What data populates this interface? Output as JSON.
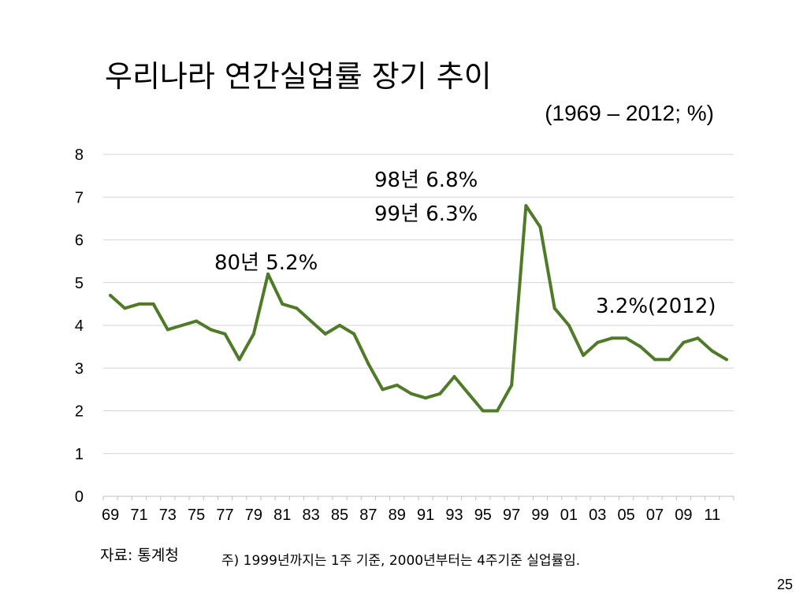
{
  "slide": {
    "title": "우리나라 연간실업률 장기 추이",
    "subtitle": "(1969 – 2012; %)",
    "source": "자료: 통계청",
    "note": "주) 1999년까지는 1주 기준, 2000년부터는 4주기준 실업률임.",
    "page_number": "25"
  },
  "chart_data": {
    "type": "line",
    "title": "우리나라 연간실업률 장기 추이",
    "xlabel": "",
    "ylabel": "",
    "x": [
      1969,
      1970,
      1971,
      1972,
      1973,
      1974,
      1975,
      1976,
      1977,
      1978,
      1979,
      1980,
      1981,
      1982,
      1983,
      1984,
      1985,
      1986,
      1987,
      1988,
      1989,
      1990,
      1991,
      1992,
      1993,
      1994,
      1995,
      1996,
      1997,
      1998,
      1999,
      2000,
      2001,
      2002,
      2003,
      2004,
      2005,
      2006,
      2007,
      2008,
      2009,
      2010,
      2011,
      2012
    ],
    "x_tick_labels": [
      "69",
      "71",
      "73",
      "75",
      "77",
      "79",
      "81",
      "83",
      "85",
      "87",
      "89",
      "91",
      "93",
      "95",
      "97",
      "99",
      "01",
      "03",
      "05",
      "07",
      "09",
      "11"
    ],
    "series": [
      {
        "values": [
          4.7,
          4.4,
          4.5,
          4.5,
          3.9,
          4.0,
          4.1,
          3.9,
          3.8,
          3.2,
          3.8,
          5.2,
          4.5,
          4.4,
          4.1,
          3.8,
          4.0,
          3.8,
          3.1,
          2.5,
          2.6,
          2.4,
          2.3,
          2.4,
          2.8,
          2.4,
          2.0,
          2.0,
          2.6,
          6.8,
          6.3,
          4.4,
          4.0,
          3.3,
          3.6,
          3.7,
          3.7,
          3.5,
          3.2,
          3.2,
          3.6,
          3.7,
          3.4,
          3.2
        ],
        "color": "#4f7a28"
      }
    ],
    "ylim": [
      0,
      8
    ],
    "y_ticks": [
      0,
      1,
      2,
      3,
      4,
      5,
      6,
      7,
      8
    ],
    "grid": true,
    "legend": "none",
    "annotations": [
      {
        "text": "80년 5.2%",
        "x": 1980,
        "y": 5.2
      },
      {
        "text": "98년 6.8%",
        "x": 1998,
        "y": 6.8
      },
      {
        "text": "99년 6.3%",
        "x": 1999,
        "y": 6.3
      },
      {
        "text": "3.2%(2012)",
        "x": 2012,
        "y": 3.2
      }
    ]
  }
}
